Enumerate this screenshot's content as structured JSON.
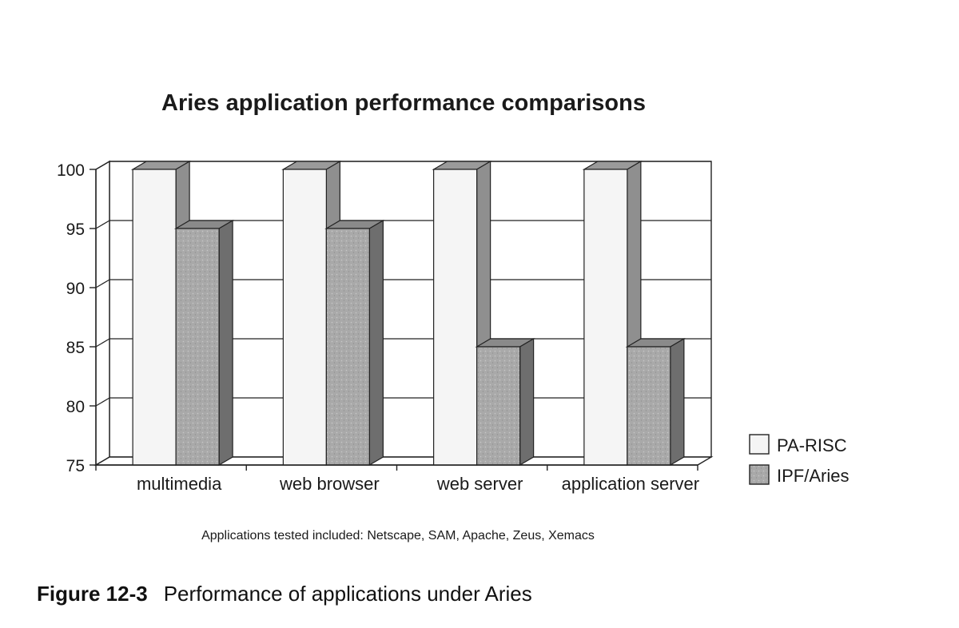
{
  "chart_data": {
    "type": "bar",
    "title": "Aries application performance comparisons",
    "categories": [
      "multimedia",
      "web browser",
      "web server",
      "application server"
    ],
    "series": [
      {
        "name": "PA-RISC",
        "values": [
          100,
          100,
          100,
          100
        ]
      },
      {
        "name": "IPF/Aries",
        "values": [
          95,
          95,
          85,
          85
        ]
      }
    ],
    "ylim": [
      75,
      100
    ],
    "yticks": [
      75,
      80,
      85,
      90,
      95,
      100
    ],
    "xlabel": "",
    "ylabel": "",
    "grid": true,
    "legend_position": "right",
    "style": "3d",
    "annotations": [
      "Applications tested  included: Netscape, SAM, Apache, Zeus, Xemacs"
    ]
  },
  "colors": {
    "series_fill": [
      "#f5f5f5",
      "#a9a9a9"
    ],
    "series_side": [
      "#8f8f8f",
      "#6e6e6e"
    ],
    "series_top": [
      "#9a9a9a",
      "#8a8a8a"
    ],
    "gridline": "#222222"
  },
  "caption": {
    "number": "Figure 12-3",
    "text": "Performance of applications under Aries"
  }
}
